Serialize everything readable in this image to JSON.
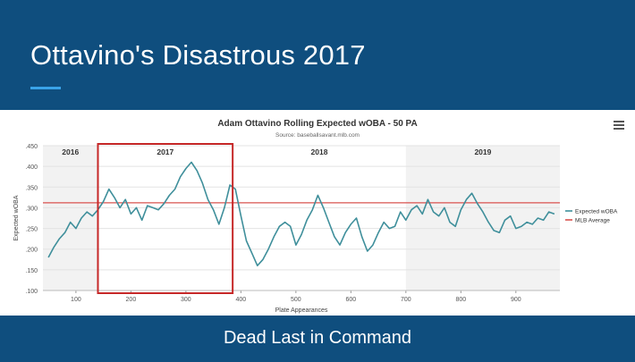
{
  "slide": {
    "title": "Ottavino's Disastrous 2017",
    "footer": "Dead Last in Command"
  },
  "colors": {
    "header_bg": "#0f4e7e",
    "accent": "#3aa3e8",
    "series_line": "#3f8f9b",
    "mlb_avg_line": "#d9534f",
    "highlight_box": "#c62828",
    "shaded_band": "#f2f2f2"
  },
  "icons": {
    "menu": "hamburger-menu-icon"
  },
  "chart_data": {
    "type": "line",
    "title": "Adam Ottavino Rolling Expected wOBA - 50 PA",
    "subtitle": "Source: baseballsavant.mlb.com",
    "xlabel": "Plate Appearances",
    "ylabel": "Expected wOBA",
    "xlim": [
      40,
      980
    ],
    "ylim": [
      0.1,
      0.45
    ],
    "x_ticks": [
      100,
      200,
      300,
      400,
      500,
      600,
      700,
      800,
      900
    ],
    "y_ticks": [
      ".100",
      ".150",
      ".200",
      ".250",
      ".300",
      ".350",
      ".400",
      ".450"
    ],
    "grid": true,
    "legend_position": "right",
    "season_bands": [
      {
        "label": "2016",
        "start": 40,
        "end": 140,
        "shaded": true
      },
      {
        "label": "2017",
        "start": 140,
        "end": 385,
        "shaded": false,
        "highlighted": true
      },
      {
        "label": "2018",
        "start": 385,
        "end": 700,
        "shaded": false
      },
      {
        "label": "2019",
        "start": 700,
        "end": 980,
        "shaded": true
      }
    ],
    "reference_line": {
      "name": "MLB Average",
      "value": 0.312
    },
    "series": [
      {
        "name": "Expected wOBA",
        "x": [
          50,
          60,
          70,
          80,
          90,
          100,
          110,
          120,
          130,
          140,
          150,
          160,
          170,
          180,
          190,
          200,
          210,
          220,
          230,
          240,
          250,
          260,
          270,
          280,
          290,
          300,
          310,
          320,
          330,
          340,
          350,
          360,
          370,
          380,
          390,
          400,
          410,
          420,
          430,
          440,
          450,
          460,
          470,
          480,
          490,
          500,
          510,
          520,
          530,
          540,
          550,
          560,
          570,
          580,
          590,
          600,
          610,
          620,
          630,
          640,
          650,
          660,
          670,
          680,
          690,
          700,
          710,
          720,
          730,
          740,
          750,
          760,
          770,
          780,
          790,
          800,
          810,
          820,
          830,
          840,
          850,
          860,
          870,
          880,
          890,
          900,
          910,
          920,
          930,
          940,
          950,
          960,
          970
        ],
        "y": [
          0.18,
          0.205,
          0.225,
          0.24,
          0.265,
          0.25,
          0.275,
          0.29,
          0.28,
          0.295,
          0.315,
          0.345,
          0.325,
          0.3,
          0.32,
          0.285,
          0.3,
          0.27,
          0.305,
          0.3,
          0.295,
          0.31,
          0.33,
          0.345,
          0.375,
          0.395,
          0.41,
          0.39,
          0.36,
          0.32,
          0.295,
          0.26,
          0.3,
          0.355,
          0.345,
          0.28,
          0.22,
          0.19,
          0.16,
          0.175,
          0.2,
          0.23,
          0.255,
          0.265,
          0.255,
          0.21,
          0.235,
          0.27,
          0.295,
          0.33,
          0.3,
          0.265,
          0.23,
          0.21,
          0.24,
          0.26,
          0.275,
          0.23,
          0.195,
          0.21,
          0.24,
          0.265,
          0.25,
          0.255,
          0.29,
          0.27,
          0.295,
          0.305,
          0.285,
          0.32,
          0.29,
          0.28,
          0.3,
          0.265,
          0.255,
          0.295,
          0.32,
          0.335,
          0.31,
          0.29,
          0.265,
          0.245,
          0.24,
          0.27,
          0.28,
          0.25,
          0.255,
          0.265,
          0.26,
          0.275,
          0.27,
          0.29,
          0.285
        ]
      }
    ]
  }
}
